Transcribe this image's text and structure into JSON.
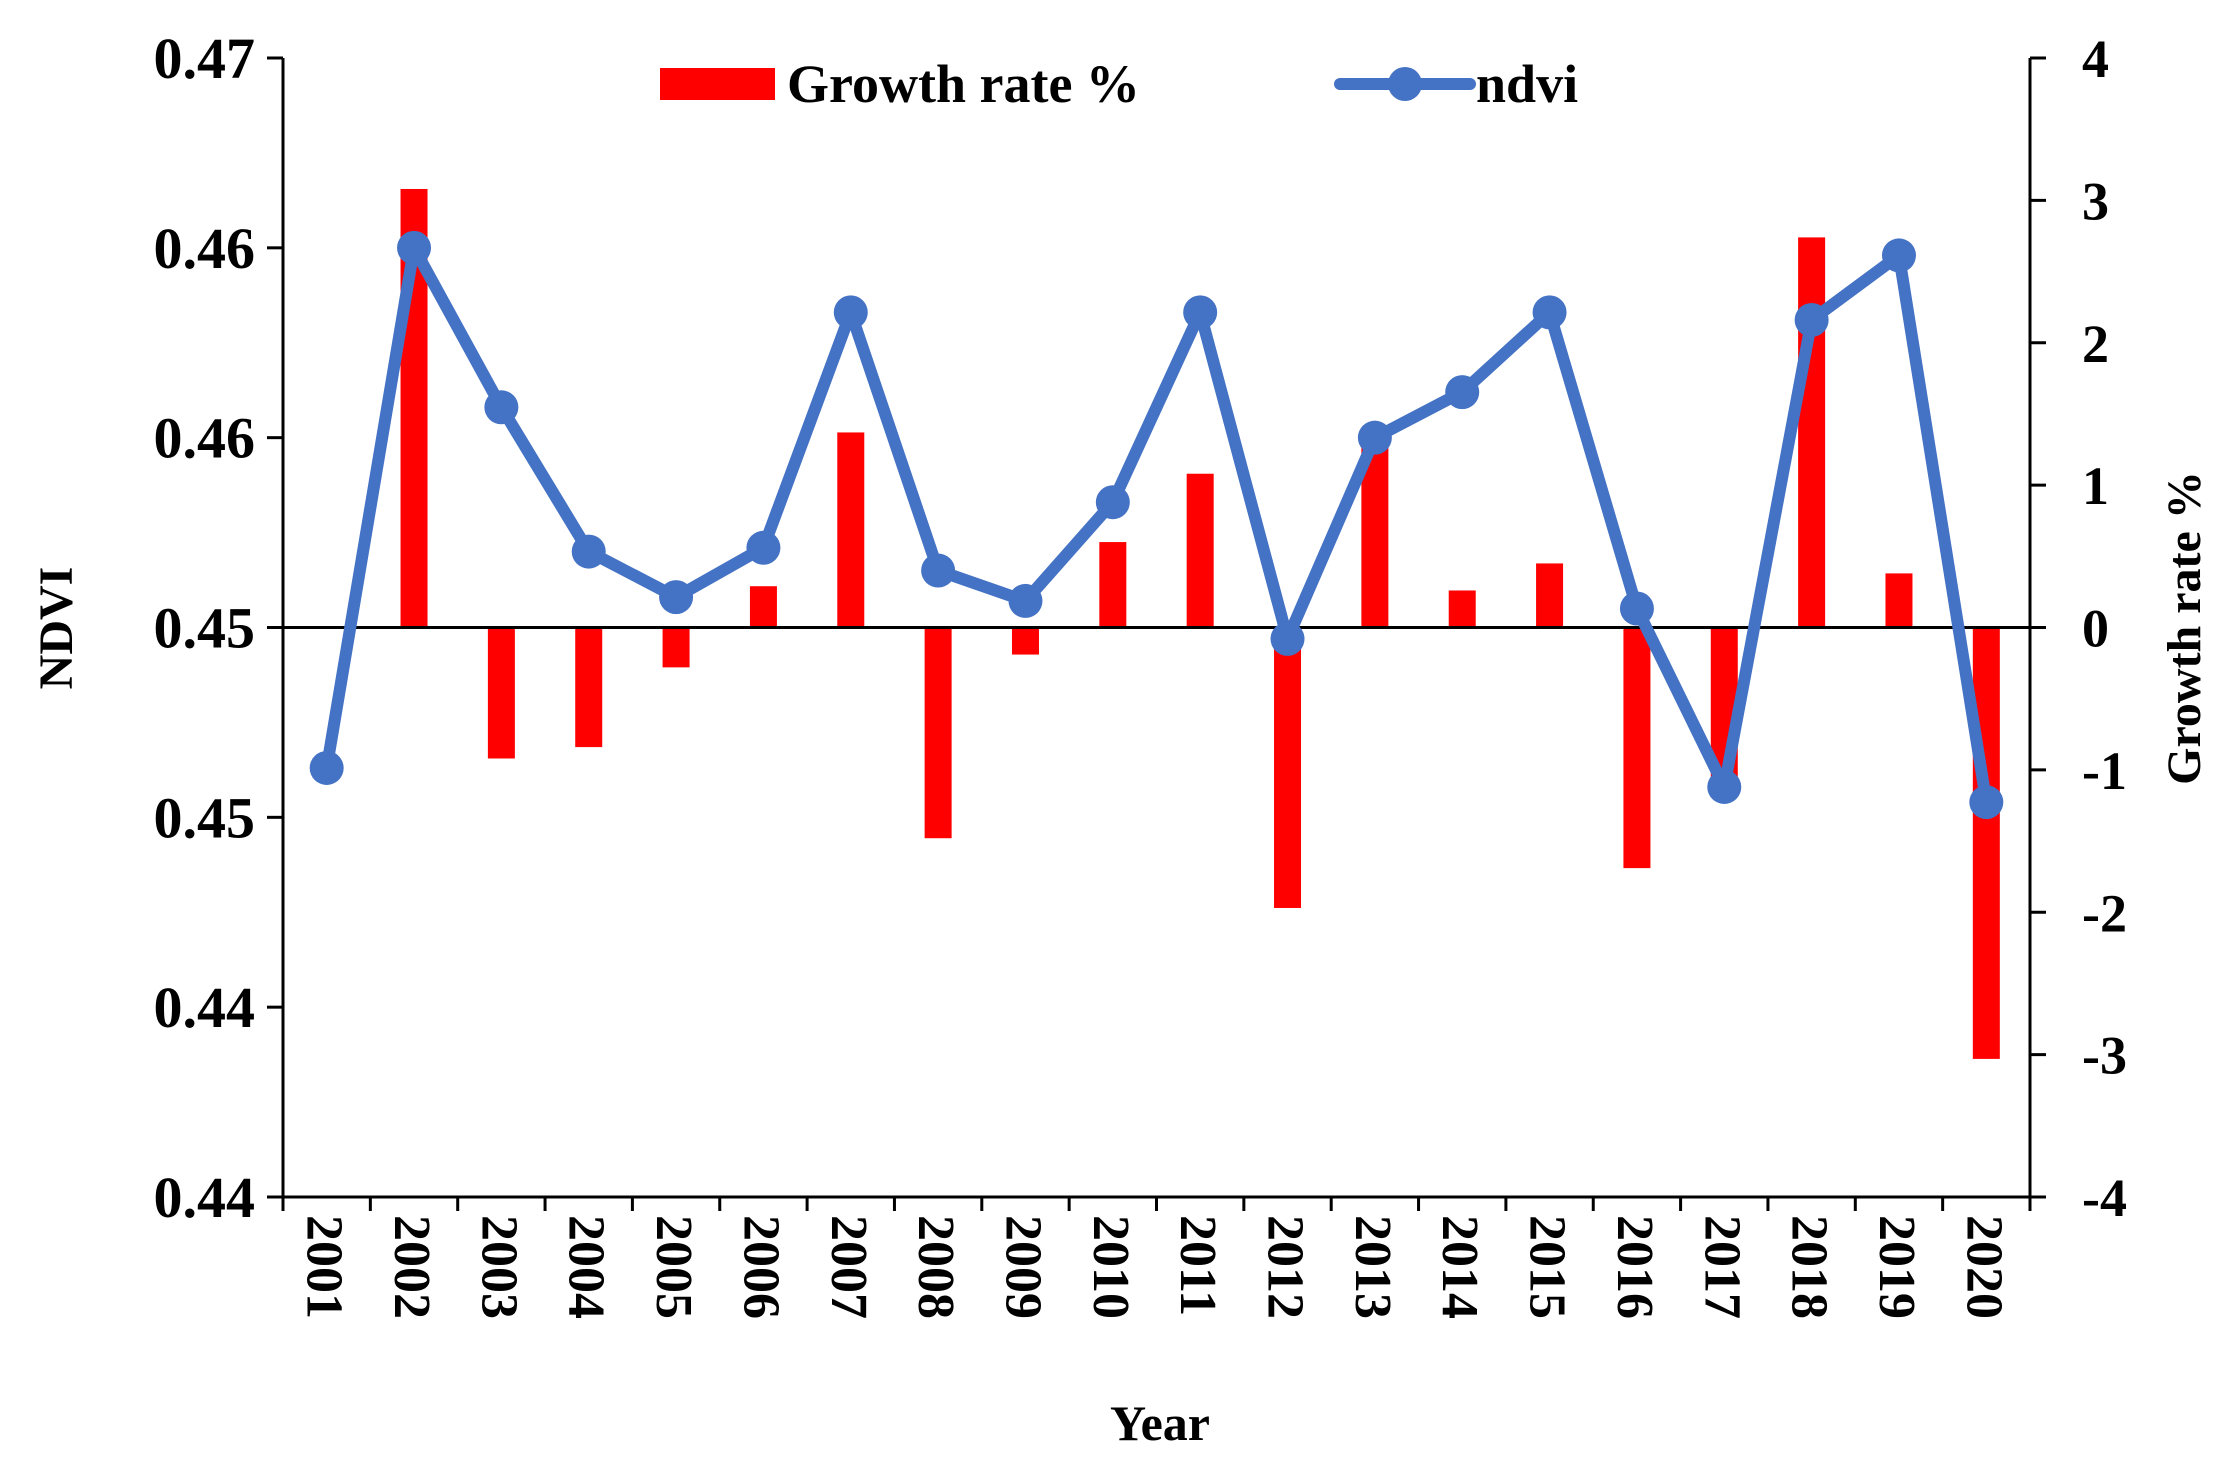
{
  "chart_data": {
    "type": "bar+line",
    "title": "",
    "xlabel": "Year",
    "ylabel": "NDVI",
    "y2label": "Growth rate %",
    "categories": [
      "2001",
      "2002",
      "2003",
      "2004",
      "2005",
      "2006",
      "2007",
      "2008",
      "2009",
      "2010",
      "2011",
      "2012",
      "2013",
      "2014",
      "2015",
      "2016",
      "2017",
      "2018",
      "2019",
      "2020"
    ],
    "ylim": [
      0.435,
      0.465
    ],
    "y2lim": [
      -4,
      4
    ],
    "yticks": [
      0.435,
      0.44,
      0.445,
      0.45,
      0.455,
      0.46,
      0.465
    ],
    "ytick_labels": [
      "0.44",
      "0.44",
      "0.45",
      "0.45",
      "0.46",
      "0.46",
      "0.47"
    ],
    "y2ticks": [
      -4,
      -3,
      -2,
      -1,
      0,
      1,
      2,
      3,
      4
    ],
    "y2tick_labels": [
      "-4",
      "-3",
      "-2",
      "-1",
      "0",
      "1",
      "2",
      "3",
      "4"
    ],
    "legend_position": "top-center",
    "series": [
      {
        "name": "Growth rate %",
        "type": "bar",
        "axis": "right",
        "color": "#ff0000",
        "values": [
          null,
          3.08,
          -0.92,
          -0.84,
          -0.28,
          0.29,
          1.37,
          -1.48,
          -0.19,
          0.6,
          1.08,
          -1.97,
          1.33,
          0.26,
          0.45,
          -1.69,
          -1.08,
          2.74,
          0.38,
          -3.03
        ]
      },
      {
        "name": "ndvi",
        "type": "line",
        "axis": "left",
        "color": "#4472c4",
        "values": [
          0.4463,
          0.46,
          0.4558,
          0.452,
          0.4508,
          0.4521,
          0.4583,
          0.4515,
          0.4507,
          0.4533,
          0.4583,
          0.4497,
          0.455,
          0.4562,
          0.4583,
          0.4505,
          0.4458,
          0.4581,
          0.4598,
          0.4454
        ]
      }
    ]
  }
}
